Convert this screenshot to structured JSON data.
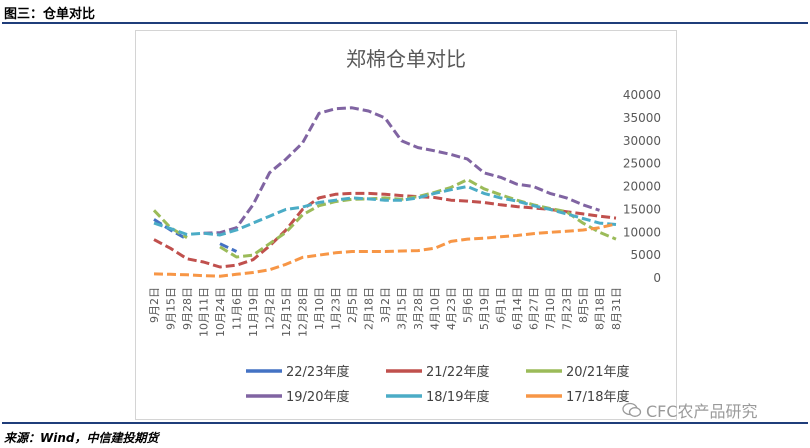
{
  "figure_title": "图三：仓单对比",
  "source_text": "来源：Wind，中信建投期货",
  "watermark": "CFC农产品研究",
  "chart_data": {
    "type": "line",
    "title": "郑棉仓单对比",
    "xlabel": "",
    "ylabel": "",
    "ylim": [
      0,
      40000
    ],
    "yticks": [
      0,
      5000,
      10000,
      15000,
      20000,
      25000,
      30000,
      35000,
      40000
    ],
    "y_axis_side": "right",
    "grid": false,
    "legend_position": "bottom",
    "categories": [
      "9月2日",
      "9月15日",
      "9月28日",
      "10月11日",
      "10月24日",
      "11月6日",
      "11月19日",
      "12月2日",
      "12月15日",
      "12月28日",
      "1月10日",
      "1月23日",
      "2月5日",
      "2月18日",
      "3月2日",
      "3月15日",
      "3月28日",
      "4月10日",
      "4月23日",
      "5月6日",
      "5月19日",
      "6月1日",
      "6月14日",
      "6月27日",
      "7月10日",
      "7月23日",
      "8月5日",
      "8月18日",
      "8月31日"
    ],
    "series": [
      {
        "name": "22/23年度",
        "color": "#4472c4",
        "values": [
          12800,
          10500,
          8500,
          null,
          7500,
          5800,
          null,
          null,
          null,
          null,
          null,
          null,
          null,
          null,
          null,
          null,
          null,
          null,
          null,
          null,
          null,
          null,
          null,
          null,
          null,
          null,
          null,
          null,
          null
        ]
      },
      {
        "name": "21/22年度",
        "color": "#c0504d",
        "values": [
          8400,
          6500,
          4200,
          3500,
          2400,
          2800,
          4000,
          7000,
          10500,
          15000,
          17500,
          18300,
          18500,
          18500,
          18300,
          18000,
          17800,
          17600,
          17000,
          16800,
          16500,
          16000,
          15600,
          15300,
          15000,
          14500,
          14000,
          13500,
          13100
        ]
      },
      {
        "name": "20/21年度",
        "color": "#9bbb59",
        "values": [
          14800,
          11000,
          8800,
          null,
          6800,
          4600,
          5000,
          7500,
          10000,
          13800,
          15800,
          16700,
          17200,
          17300,
          17500,
          17200,
          17800,
          18700,
          19800,
          21500,
          19500,
          18200,
          17000,
          16000,
          15200,
          14500,
          12000,
          10000,
          8500
        ]
      },
      {
        "name": "19/20年度",
        "color": "#8064a2",
        "values": [
          null,
          null,
          null,
          9800,
          9900,
          11000,
          16000,
          23000,
          26000,
          29500,
          36000,
          37000,
          37200,
          36500,
          35000,
          30000,
          28500,
          27800,
          27000,
          26000,
          23000,
          22000,
          20500,
          20000,
          18500,
          17500,
          16000,
          14800,
          null
        ]
      },
      {
        "name": "18/19年度",
        "color": "#4bacc6",
        "values": [
          12000,
          10800,
          9500,
          9800,
          9400,
          10500,
          12000,
          13500,
          15000,
          15500,
          16500,
          17000,
          17500,
          17300,
          17000,
          17000,
          17500,
          18500,
          19300,
          20000,
          18500,
          17500,
          16800,
          15800,
          15000,
          14000,
          13000,
          12000,
          11700
        ]
      },
      {
        "name": "17/18年度",
        "color": "#f79646",
        "values": [
          900,
          800,
          700,
          500,
          400,
          800,
          1200,
          1800,
          3000,
          4500,
          5000,
          5500,
          5800,
          5800,
          5800,
          5900,
          6000,
          6500,
          8000,
          8500,
          8700,
          9000,
          9300,
          9700,
          10000,
          10200,
          10500,
          11000,
          11800
        ]
      }
    ]
  }
}
